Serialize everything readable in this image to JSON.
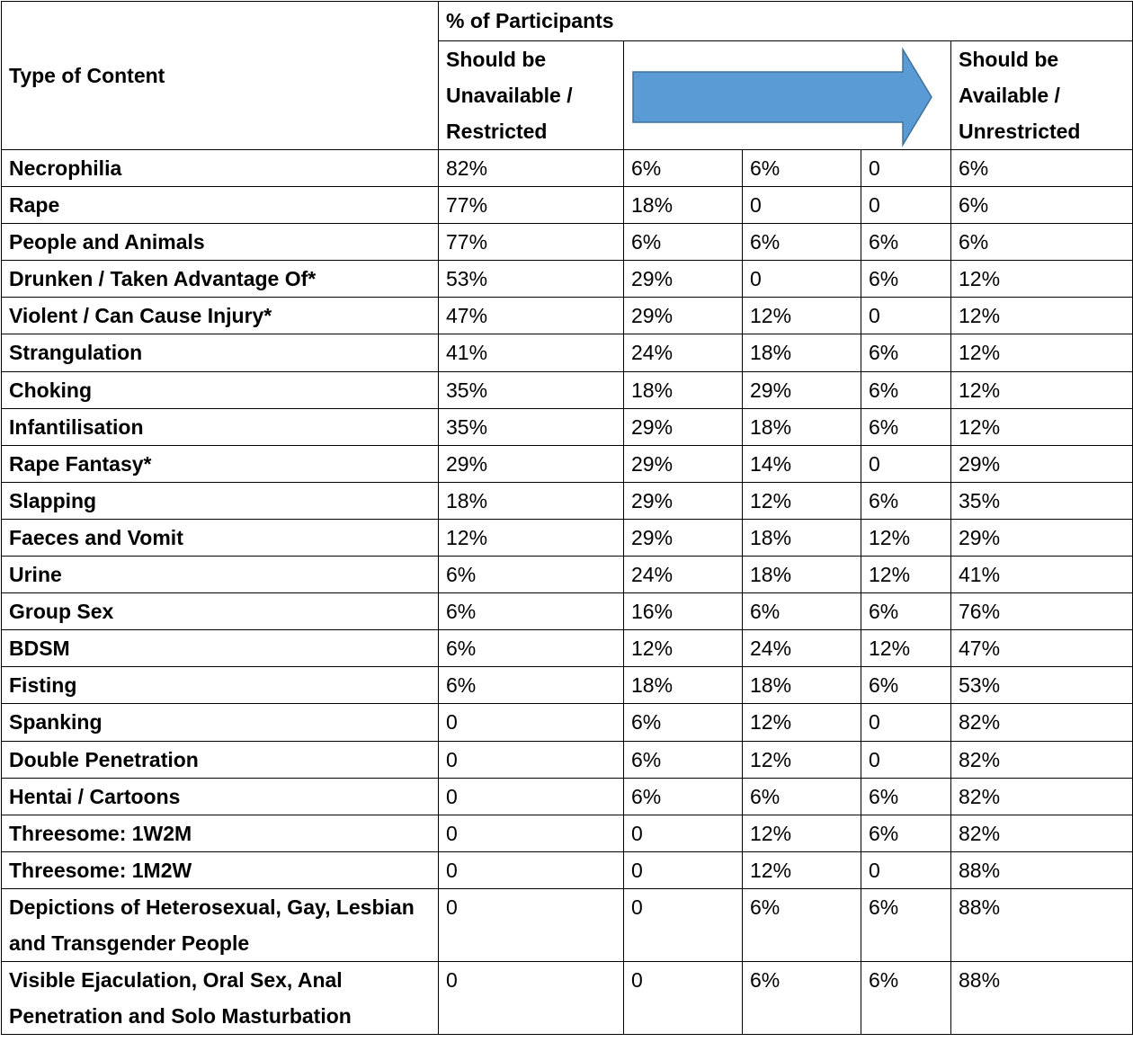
{
  "header": {
    "type_of_content": "Type of Content",
    "participants": "% of Participants",
    "left": "Should be Unavailable / Restricted",
    "right": "Should be Available / Unrestricted"
  },
  "table": {
    "rows": [
      [
        "Necrophilia",
        "82%",
        "6%",
        "6%",
        "0",
        "6%"
      ],
      [
        "Rape",
        "77%",
        "18%",
        "0",
        "0",
        "6%"
      ],
      [
        "People and Animals",
        "77%",
        "6%",
        "6%",
        "6%",
        "6%"
      ],
      [
        "Drunken / Taken Advantage Of*",
        "53%",
        "29%",
        "0",
        "6%",
        "12%"
      ],
      [
        "Violent / Can Cause Injury*",
        "47%",
        "29%",
        "12%",
        "0",
        "12%"
      ],
      [
        "Strangulation",
        "41%",
        "24%",
        "18%",
        "6%",
        "12%"
      ],
      [
        "Choking",
        "35%",
        "18%",
        "29%",
        "6%",
        "12%"
      ],
      [
        "Infantilisation",
        "35%",
        "29%",
        "18%",
        "6%",
        "12%"
      ],
      [
        "Rape Fantasy*",
        "29%",
        "29%",
        "14%",
        "0",
        "29%"
      ],
      [
        "Slapping",
        "18%",
        "29%",
        "12%",
        "6%",
        "35%"
      ],
      [
        "Faeces and Vomit",
        "12%",
        "29%",
        "18%",
        "12%",
        "29%"
      ],
      [
        "Urine",
        "6%",
        "24%",
        "18%",
        "12%",
        "41%"
      ],
      [
        "Group Sex",
        "6%",
        "16%",
        "6%",
        "6%",
        "76%"
      ],
      [
        "BDSM",
        "6%",
        "12%",
        "24%",
        "12%",
        "47%"
      ],
      [
        "Fisting",
        "6%",
        "18%",
        "18%",
        "6%",
        "53%"
      ],
      [
        "Spanking",
        "0",
        "6%",
        "12%",
        "0",
        "82%"
      ],
      [
        "Double Penetration",
        "0",
        "6%",
        "12%",
        "0",
        "82%"
      ],
      [
        "Hentai / Cartoons",
        "0",
        "6%",
        "6%",
        "6%",
        "82%"
      ],
      [
        "Threesome: 1W2M",
        "0",
        "0",
        "12%",
        "6%",
        "82%"
      ],
      [
        "Threesome: 1M2W",
        "0",
        "0",
        "12%",
        "0",
        "88%"
      ],
      [
        "Depictions of Heterosexual, Gay, Lesbian and Transgender People",
        "0",
        "0",
        "6%",
        "6%",
        "88%"
      ],
      [
        "Visible Ejaculation, Oral Sex, Anal Penetration and Solo Masturbation",
        "0",
        "0",
        "6%",
        "6%",
        "88%"
      ]
    ]
  }
}
